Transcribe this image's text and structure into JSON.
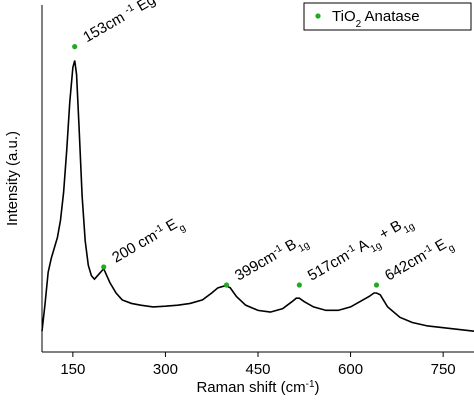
{
  "chart_data": {
    "type": "line",
    "x_label": [
      {
        "text": "Raman shift (cm"
      },
      {
        "text": "-1",
        "style": "sup"
      },
      {
        "text": ")"
      }
    ],
    "y_label": [
      {
        "text": "Intensity (a.u.)"
      }
    ],
    "xlim": [
      100,
      800
    ],
    "ylim": [
      0,
      100
    ],
    "xticks": [
      150,
      300,
      450,
      600,
      750
    ],
    "legend": "top-right",
    "series": [
      {
        "color": "#000000",
        "x": [
          100,
          105,
          110,
          115,
          120,
          125,
          130,
          135,
          140,
          145,
          150,
          153,
          156,
          160,
          165,
          170,
          175,
          180,
          185,
          190,
          195,
          200,
          205,
          210,
          220,
          230,
          245,
          260,
          280,
          300,
          320,
          340,
          360,
          375,
          385,
          395,
          399,
          405,
          415,
          430,
          450,
          470,
          490,
          505,
          512,
          517,
          525,
          540,
          560,
          580,
          600,
          615,
          630,
          638,
          642,
          648,
          660,
          680,
          700,
          725,
          750,
          775,
          800
        ],
        "values": [
          6,
          14,
          23,
          27,
          30,
          33,
          38,
          46,
          58,
          72,
          82,
          84,
          80,
          65,
          45,
          32,
          25,
          22,
          21,
          22,
          23,
          24,
          22,
          20,
          17,
          15,
          14,
          13.5,
          13,
          13.2,
          13.5,
          14,
          15,
          17,
          18.5,
          19,
          19,
          18.5,
          16,
          13.5,
          12,
          11.5,
          12.5,
          14.5,
          15.5,
          15.5,
          14.5,
          13,
          12,
          12,
          13,
          14.5,
          16,
          17,
          17,
          16.5,
          13,
          10,
          8.5,
          7.5,
          7,
          6.5,
          6
        ]
      },
      {
        "type": "scatter",
        "color": "#22aa22",
        "name": [
          {
            "text": "TiO"
          },
          {
            "text": "2",
            "style": "sub"
          },
          {
            "text": " Anatase"
          }
        ],
        "x": [
          153,
          200,
          399,
          517,
          642
        ],
        "values": [
          88,
          24.5,
          19.3,
          19.3,
          19.3
        ],
        "labels": [
          [
            {
              "text": "153cm "
            },
            {
              "text": "-1",
              "style": "sup"
            },
            {
              "text": " Eg"
            }
          ],
          [
            {
              "text": "200 cm"
            },
            {
              "text": "-1",
              "style": "sup"
            },
            {
              "text": " E"
            },
            {
              "text": "g",
              "style": "sub"
            }
          ],
          [
            {
              "text": "399cm"
            },
            {
              "text": "-1",
              "style": "sup"
            },
            {
              "text": " B"
            },
            {
              "text": "1g",
              "style": "sub"
            }
          ],
          [
            {
              "text": "517cm"
            },
            {
              "text": "-1",
              "style": "sup"
            },
            {
              "text": " A"
            },
            {
              "text": "1g",
              "style": "sub"
            },
            {
              "text": " + B"
            },
            {
              "text": "1g",
              "style": "sub"
            }
          ],
          [
            {
              "text": "642cm"
            },
            {
              "text": "-1",
              "style": "sup"
            },
            {
              "text": " E"
            },
            {
              "text": "g",
              "style": "sub"
            }
          ]
        ]
      }
    ]
  }
}
